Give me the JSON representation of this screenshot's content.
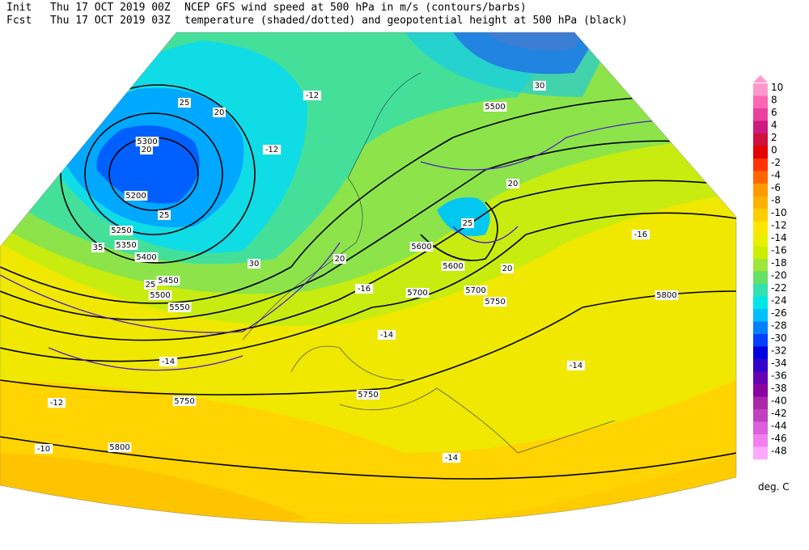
{
  "header": {
    "init_label": "Init",
    "init_time": "Thu 17 OCT 2019 00Z",
    "fcst_label": "Fcst",
    "fcst_time": "Thu 17 OCT 2019 03Z",
    "title_line1": "NCEP GFS wind speed at 500 hPa in m/s (contours/barbs)",
    "title_line2": "temperature (shaded/dotted) and geopotential height at 500 hPa (black)"
  },
  "legend": {
    "unit": "deg. C",
    "levels": [
      10,
      8,
      6,
      4,
      2,
      0,
      -2,
      -4,
      -6,
      -8,
      -10,
      -12,
      -14,
      -16,
      -18,
      -20,
      -22,
      -24,
      -26,
      -28,
      -30,
      -32,
      -34,
      -36,
      -38,
      -40,
      -42,
      -44,
      -46,
      -48
    ],
    "colors": [
      "#ff99cc",
      "#ff66b2",
      "#e8409e",
      "#cc1a80",
      "#d0103a",
      "#e60000",
      "#ff3300",
      "#ff6600",
      "#ff9900",
      "#ffb300",
      "#ffcc00",
      "#ffe600",
      "#e8f000",
      "#ccee00",
      "#9ee63a",
      "#66e066",
      "#33e0b0",
      "#00e6e6",
      "#00bfff",
      "#0080ff",
      "#0040ff",
      "#0000e0",
      "#3300cc",
      "#6600b3",
      "#8a00a0",
      "#a828a8",
      "#c040c0",
      "#dc60dc",
      "#f080f0",
      "#ffa8ff"
    ]
  },
  "map_labels": [
    "5200",
    "5250",
    "5300",
    "5350",
    "5400",
    "5450",
    "5500",
    "5550",
    "5500",
    "5600",
    "5600",
    "5700",
    "5700",
    "5750",
    "5750",
    "5750",
    "5800",
    "5800",
    "20",
    "20",
    "25",
    "25",
    "30",
    "35",
    "20",
    "25",
    "30",
    "20",
    "20",
    "25",
    "-12",
    "-14",
    "-14",
    "-14",
    "-16",
    "-16",
    "-10",
    "-12",
    "-12",
    "-14"
  ]
}
